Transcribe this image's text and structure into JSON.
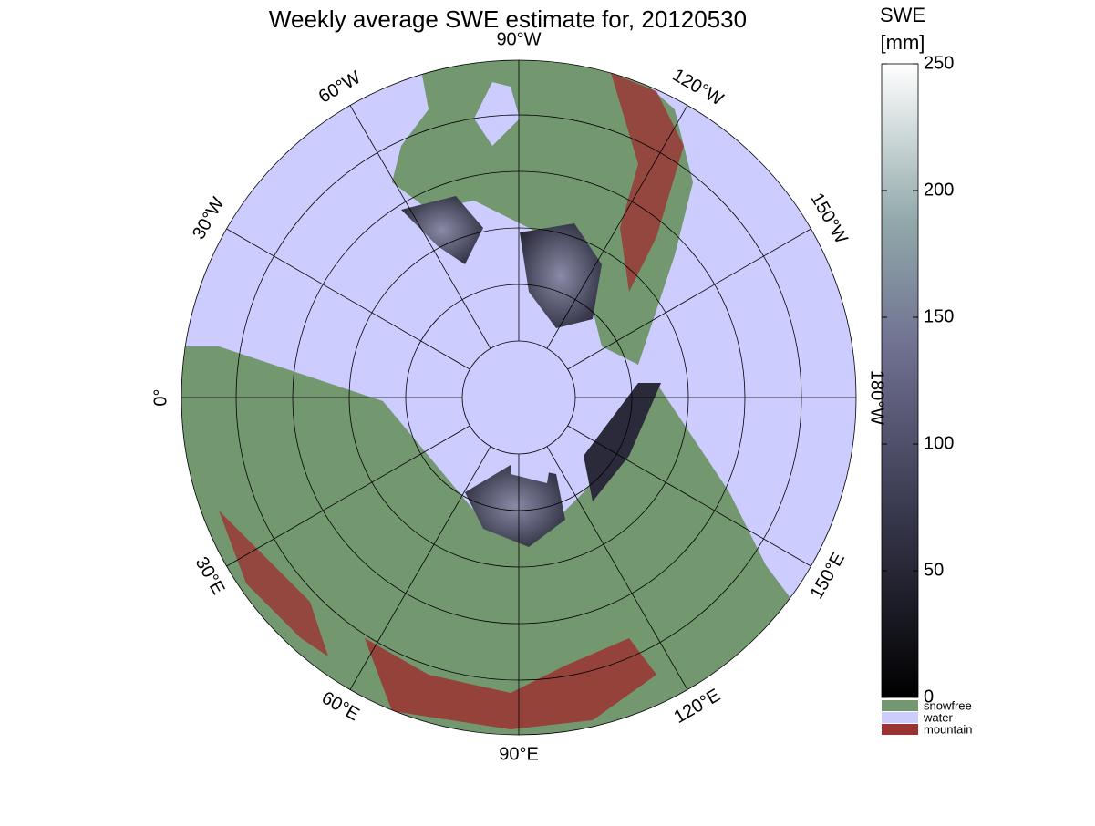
{
  "title": "Weekly average SWE estimate for, 20120530",
  "map": {
    "longitude_labels": [
      "0°",
      "30°E",
      "60°E",
      "90°E",
      "120°E",
      "150°E",
      "180°W",
      "150°W",
      "120°W",
      "90°W",
      "60°W",
      "30°W"
    ]
  },
  "colorbar": {
    "label": [
      "SWE",
      "[mm]"
    ],
    "range": [
      0,
      250
    ],
    "ticks": [
      0,
      50,
      100,
      150,
      200,
      250
    ]
  },
  "legend": [
    {
      "name": "snowfree",
      "color": "#73986f"
    },
    {
      "name": "water",
      "color": "#ccccff"
    },
    {
      "name": "mountain",
      "color": "#9b3333"
    }
  ]
}
